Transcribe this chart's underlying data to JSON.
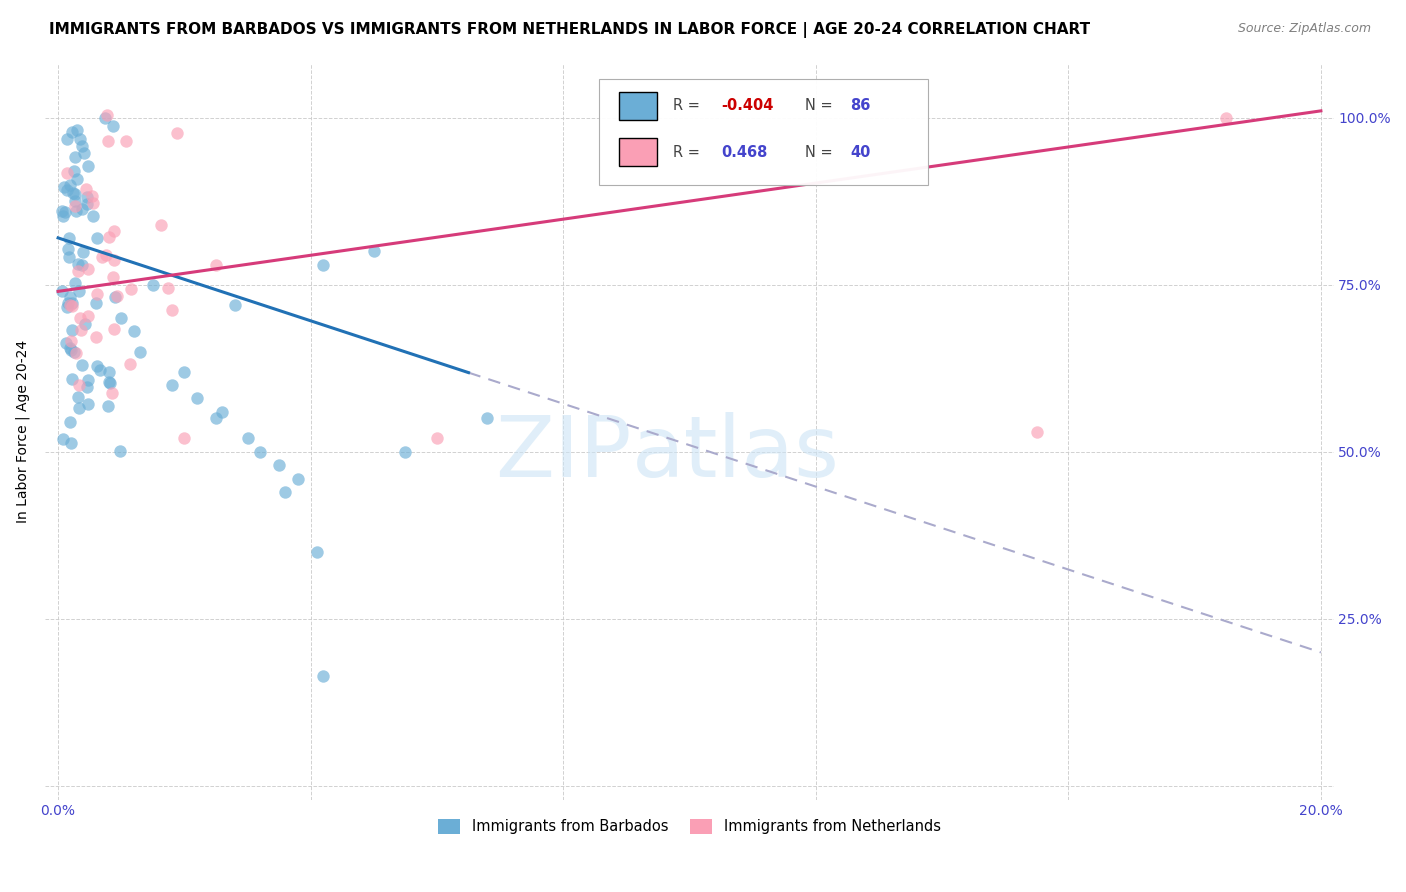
{
  "title": "IMMIGRANTS FROM BARBADOS VS IMMIGRANTS FROM NETHERLANDS IN LABOR FORCE | AGE 20-24 CORRELATION CHART",
  "source": "Source: ZipAtlas.com",
  "ylabel": "In Labor Force | Age 20-24",
  "legend_r_blue": "-0.404",
  "legend_n_blue": "86",
  "legend_r_pink": "0.468",
  "legend_n_pink": "40",
  "blue_color": "#6baed6",
  "pink_color": "#fa9fb5",
  "blue_line_color": "#2171b5",
  "pink_line_color": "#d63b7a",
  "axis_color": "#4444cc",
  "grid_color": "#cccccc",
  "title_fontsize": 11,
  "label_fontsize": 10,
  "tick_fontsize": 10,
  "scatter_size": 80,
  "scatter_alpha": 0.65,
  "xlim": [
    0.0,
    0.2
  ],
  "ylim": [
    0.0,
    1.05
  ],
  "x_tick_positions": [
    0.0,
    0.04,
    0.08,
    0.12,
    0.16,
    0.2
  ],
  "x_tick_labels": [
    "0.0%",
    "",
    "",
    "",
    "",
    "20.0%"
  ],
  "y_tick_positions": [
    0.0,
    0.25,
    0.5,
    0.75,
    1.0
  ],
  "y_right_labels": [
    "",
    "25.0%",
    "50.0%",
    "75.0%",
    "100.0%"
  ]
}
